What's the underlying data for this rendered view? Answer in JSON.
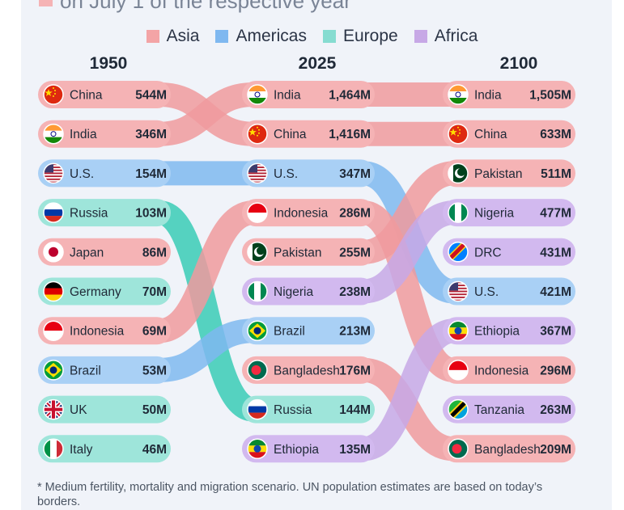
{
  "subtitle": "on July 1 of the respective year",
  "legend": [
    {
      "name": "Asia",
      "color": "#f3a4a6"
    },
    {
      "name": "Americas",
      "color": "#7fb8f0"
    },
    {
      "name": "Europe",
      "color": "#86dcd1"
    },
    {
      "name": "Africa",
      "color": "#c7a8e6"
    }
  ],
  "colors": {
    "Asia": "#f5b3b5",
    "Americas": "#a9d0f5",
    "Europe": "#9ee5da",
    "Africa": "#d2b9ef",
    "Asia_link": "#f09a9d",
    "Americas_link": "#7fb8f0",
    "Europe_link": "#39cbb6",
    "Africa_link": "#c7a8e6"
  },
  "chart_data": {
    "type": "table",
    "unit": "M",
    "years": [
      "1950",
      "2025",
      "2100"
    ],
    "columns": [
      {
        "year": "1950",
        "rows": [
          {
            "country": "China",
            "value": 544,
            "label": "544M",
            "region": "Asia",
            "flag": "china-flag"
          },
          {
            "country": "India",
            "value": 346,
            "label": "346M",
            "region": "Asia",
            "flag": "india-flag"
          },
          {
            "country": "U.S.",
            "value": 154,
            "label": "154M",
            "region": "Americas",
            "flag": "us-flag"
          },
          {
            "country": "Russia",
            "value": 103,
            "label": "103M",
            "region": "Europe",
            "flag": "russia-flag"
          },
          {
            "country": "Japan",
            "value": 86,
            "label": "86M",
            "region": "Asia",
            "flag": "japan-flag"
          },
          {
            "country": "Germany",
            "value": 70,
            "label": "70M",
            "region": "Europe",
            "flag": "germany-flag"
          },
          {
            "country": "Indonesia",
            "value": 69,
            "label": "69M",
            "region": "Asia",
            "flag": "indonesia-flag"
          },
          {
            "country": "Brazil",
            "value": 53,
            "label": "53M",
            "region": "Americas",
            "flag": "brazil-flag"
          },
          {
            "country": "UK",
            "value": 50,
            "label": "50M",
            "region": "Europe",
            "flag": "uk-flag"
          },
          {
            "country": "Italy",
            "value": 46,
            "label": "46M",
            "region": "Europe",
            "flag": "italy-flag"
          }
        ]
      },
      {
        "year": "2025",
        "rows": [
          {
            "country": "India",
            "value": 1464,
            "label": "1,464M",
            "region": "Asia",
            "flag": "india-flag"
          },
          {
            "country": "China",
            "value": 1416,
            "label": "1,416M",
            "region": "Asia",
            "flag": "china-flag"
          },
          {
            "country": "U.S.",
            "value": 347,
            "label": "347M",
            "region": "Americas",
            "flag": "us-flag"
          },
          {
            "country": "Indonesia",
            "value": 286,
            "label": "286M",
            "region": "Asia",
            "flag": "indonesia-flag"
          },
          {
            "country": "Pakistan",
            "value": 255,
            "label": "255M",
            "region": "Asia",
            "flag": "pakistan-flag"
          },
          {
            "country": "Nigeria",
            "value": 238,
            "label": "238M",
            "region": "Africa",
            "flag": "nigeria-flag"
          },
          {
            "country": "Brazil",
            "value": 213,
            "label": "213M",
            "region": "Americas",
            "flag": "brazil-flag"
          },
          {
            "country": "Bangladesh",
            "value": 176,
            "label": "176M",
            "region": "Asia",
            "flag": "bangladesh-flag"
          },
          {
            "country": "Russia",
            "value": 144,
            "label": "144M",
            "region": "Europe",
            "flag": "russia-flag"
          },
          {
            "country": "Ethiopia",
            "value": 135,
            "label": "135M",
            "region": "Africa",
            "flag": "ethiopia-flag"
          }
        ]
      },
      {
        "year": "2100",
        "rows": [
          {
            "country": "India",
            "value": 1505,
            "label": "1,505M",
            "region": "Asia",
            "flag": "india-flag"
          },
          {
            "country": "China",
            "value": 633,
            "label": "633M",
            "region": "Asia",
            "flag": "china-flag"
          },
          {
            "country": "Pakistan",
            "value": 511,
            "label": "511M",
            "region": "Asia",
            "flag": "pakistan-flag"
          },
          {
            "country": "Nigeria",
            "value": 477,
            "label": "477M",
            "region": "Africa",
            "flag": "nigeria-flag"
          },
          {
            "country": "DRC",
            "value": 431,
            "label": "431M",
            "region": "Africa",
            "flag": "drc-flag"
          },
          {
            "country": "U.S.",
            "value": 421,
            "label": "421M",
            "region": "Americas",
            "flag": "us-flag"
          },
          {
            "country": "Ethiopia",
            "value": 367,
            "label": "367M",
            "region": "Africa",
            "flag": "ethiopia-flag"
          },
          {
            "country": "Indonesia",
            "value": 296,
            "label": "296M",
            "region": "Asia",
            "flag": "indonesia-flag"
          },
          {
            "country": "Tanzania",
            "value": 263,
            "label": "263M",
            "region": "Africa",
            "flag": "tanzania-flag"
          },
          {
            "country": "Bangladesh",
            "value": 209,
            "label": "209M",
            "region": "Asia",
            "flag": "bangladesh-flag"
          }
        ]
      }
    ]
  },
  "footnote": "* Medium fertility, mortality and migration scenario. UN population estimates are based on today’s borders."
}
